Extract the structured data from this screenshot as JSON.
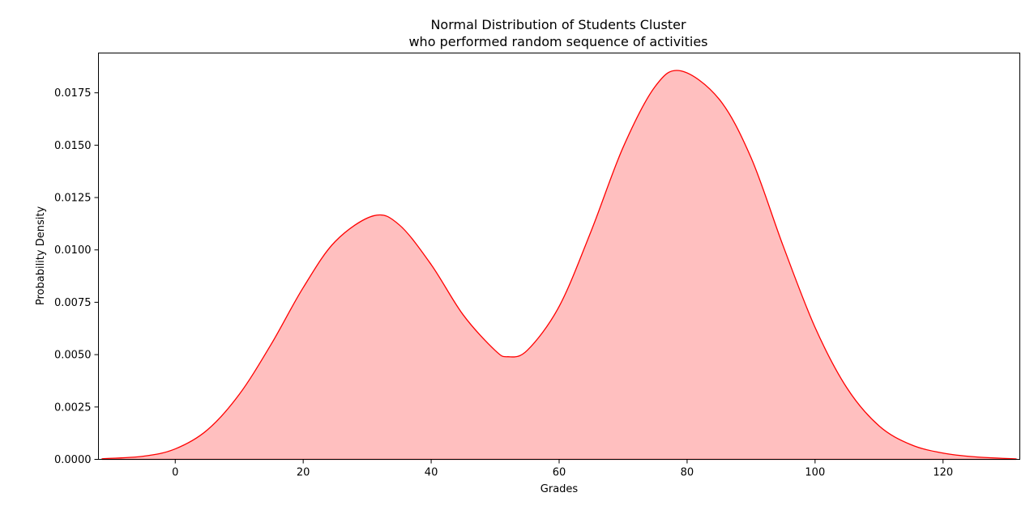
{
  "chart_data": {
    "type": "area",
    "title": "Normal Distribution of Students Cluster",
    "subtitle": "who performed random sequence of activities",
    "xlabel": "Grades",
    "ylabel": "Probability Density",
    "xlim": [
      -12,
      132
    ],
    "ylim": [
      0,
      0.0194
    ],
    "x_ticks": [
      0,
      20,
      40,
      60,
      80,
      100,
      120
    ],
    "x_tick_labels": [
      "0",
      "20",
      "40",
      "60",
      "80",
      "100",
      "120"
    ],
    "y_ticks": [
      0,
      0.0025,
      0.005,
      0.0075,
      0.01,
      0.0125,
      0.015,
      0.0175
    ],
    "y_tick_labels": [
      "0.0000",
      "0.0025",
      "0.0050",
      "0.0075",
      "0.0100",
      "0.0125",
      "0.0150",
      "0.0175"
    ],
    "grid": false,
    "legend": "none",
    "line_color": "#ff0000",
    "fill_color": "#ffbfbf",
    "series": [
      {
        "x": [
          -11.5,
          -5,
          0,
          5,
          10,
          15,
          20,
          25,
          31,
          35,
          40,
          45,
          50,
          52,
          55,
          60,
          65,
          70,
          75,
          79,
          85,
          90,
          95,
          100,
          105,
          110,
          115,
          120,
          125,
          131.5
        ],
        "y": [
          3e-05,
          0.00015,
          0.0005,
          0.0014,
          0.0031,
          0.0055,
          0.0082,
          0.0104,
          0.01163,
          0.0112,
          0.0093,
          0.0069,
          0.0052,
          0.0049,
          0.0052,
          0.0073,
          0.0109,
          0.0149,
          0.0178,
          0.01855,
          0.0172,
          0.0144,
          0.0102,
          0.0063,
          0.0034,
          0.0016,
          0.0007,
          0.0003,
          0.00012,
          2e-05
        ]
      }
    ]
  }
}
